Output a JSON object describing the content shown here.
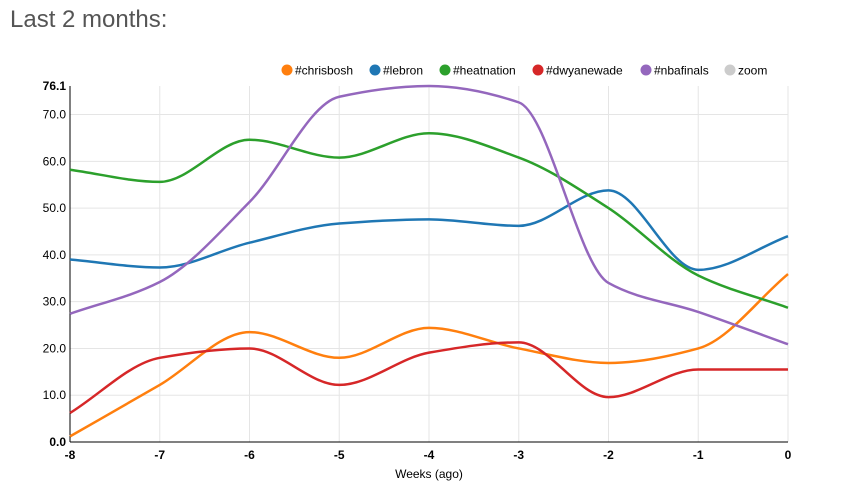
{
  "header": {
    "title": "Last 2 months:"
  },
  "chart_data": {
    "type": "line",
    "x": [
      -8,
      -7,
      -6,
      -5,
      -4,
      -3,
      -2,
      -1,
      0
    ],
    "xlabel": "Weeks (ago)",
    "ylabel": "",
    "xlim": [
      -8,
      0
    ],
    "ylim": [
      0,
      76.1
    ],
    "x_ticks": [
      "-8",
      "-7",
      "-6",
      "-5",
      "-4",
      "-3",
      "-2",
      "-1",
      "0"
    ],
    "y_ticks": [
      "0.0",
      "10.0",
      "20.0",
      "30.0",
      "40.0",
      "50.0",
      "60.0",
      "70.0"
    ],
    "y_max_label": "76.1",
    "grid": true,
    "legend_position": "top",
    "series": [
      {
        "name": "#chrisbosh",
        "color": "#ff7f0e",
        "values": [
          1.2,
          12.2,
          23.5,
          18.0,
          24.4,
          20.0,
          16.9,
          20.0,
          35.9
        ]
      },
      {
        "name": "#lebron",
        "color": "#1f77b4",
        "values": [
          39.0,
          37.3,
          42.6,
          46.7,
          47.6,
          46.2,
          53.8,
          36.8,
          44.0
        ]
      },
      {
        "name": "#heatnation",
        "color": "#2ca02c",
        "values": [
          58.2,
          55.6,
          64.6,
          60.8,
          66.0,
          60.8,
          50.0,
          35.6,
          28.7
        ]
      },
      {
        "name": "#dwyanewade",
        "color": "#d62728",
        "values": [
          6.2,
          18.0,
          20.0,
          12.2,
          19.1,
          21.3,
          9.6,
          15.5,
          15.5
        ]
      },
      {
        "name": "#nbafinals",
        "color": "#9467bd",
        "values": [
          27.4,
          34.2,
          51.3,
          73.8,
          76.1,
          72.6,
          34.0,
          27.8,
          20.9
        ]
      }
    ],
    "legend_extra": {
      "name": "zoom",
      "color": "#cccccc"
    }
  }
}
